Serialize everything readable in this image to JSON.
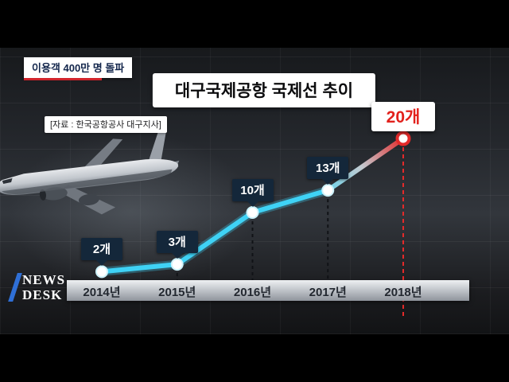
{
  "badge": {
    "label": "이용객 400만 명 돌파"
  },
  "source": {
    "label": "[자료 : 한국공항공사 대구지사]"
  },
  "logo": {
    "line1": "NEWS",
    "line2": "DESK"
  },
  "chart_data": {
    "type": "line",
    "title": "대구국제공항 국제선 추이",
    "categories": [
      "2014년",
      "2015년",
      "2016년",
      "2017년",
      "2018년"
    ],
    "values": [
      2,
      3,
      10,
      13,
      20
    ],
    "point_labels": [
      "2개",
      "3개",
      "10개",
      "13개",
      "20개"
    ],
    "unit": "개",
    "highlight_index": 4,
    "ylim": [
      0,
      22
    ],
    "grid": false,
    "legend_position": "none",
    "line_color": "#3fd2f5",
    "line_glow_color": "rgba(63,210,245,0.3)",
    "highlight_color": "#e42a2a",
    "label_box_color": "#14273a",
    "label_text_color": "#ffffff",
    "highlight_label_bg": "#ffffff",
    "highlight_label_text": "#e2211c",
    "axis_label_color": "#232830"
  }
}
